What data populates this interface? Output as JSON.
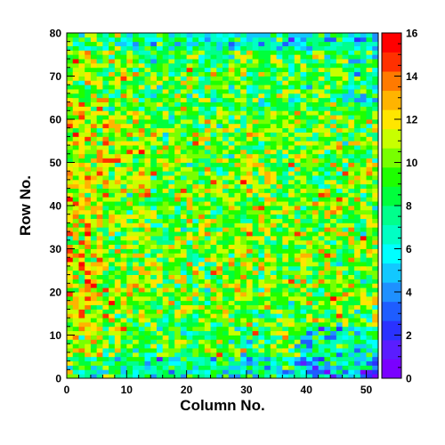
{
  "chart_data": {
    "type": "heatmap",
    "title": "",
    "xlabel": "Column No.",
    "ylabel": "Row No.",
    "xlim": [
      0,
      52
    ],
    "ylim": [
      0,
      80
    ],
    "x_ticks": [
      0,
      10,
      20,
      30,
      40,
      50
    ],
    "y_ticks": [
      0,
      10,
      20,
      30,
      40,
      50,
      60,
      70,
      80
    ],
    "colorbar": {
      "min": 0,
      "max": 16,
      "ticks": [
        0,
        2,
        4,
        6,
        8,
        10,
        12,
        14,
        16
      ]
    },
    "colormap": [
      "#7a00ff",
      "#5a1dff",
      "#2a32ff",
      "#1e5dff",
      "#1e90ff",
      "#12c8ff",
      "#00ffff",
      "#00ffc4",
      "#00ff8c",
      "#00ff3c",
      "#1eff00",
      "#78ff00",
      "#c8ff00",
      "#ffe600",
      "#ffb400",
      "#ff7a00",
      "#ff3000",
      "#ff0000"
    ],
    "grid": false,
    "columns": 52,
    "rows": 80,
    "value_pattern": "counts mostly 6 to 12; higher (about 11 to 13) at columns 0-12 and rows 15-60; lower (about 5 to 7) near rows 0-5 and rows 75-80, and at columns 40-52 near the bottom"
  }
}
